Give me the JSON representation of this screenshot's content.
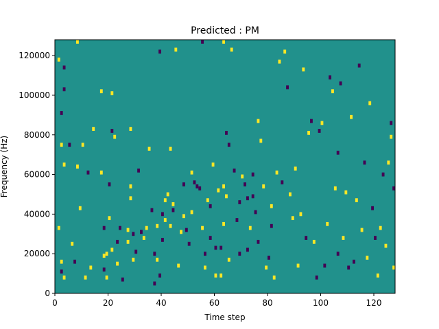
{
  "chart_data": {
    "type": "heatmap",
    "title": "Predicted : PM",
    "xlabel": "Time step",
    "ylabel": "Frequency (Hz)",
    "xlim": [
      0,
      128
    ],
    "ylim": [
      0,
      128000
    ],
    "xticks": [
      0,
      20,
      40,
      60,
      80,
      100,
      120
    ],
    "yticks": [
      0,
      20000,
      40000,
      60000,
      80000,
      100000,
      120000
    ],
    "grid": false,
    "colormap": "viridis",
    "levels": [
      -1,
      0,
      1
    ],
    "colors": {
      "-1": "#440154",
      "0": "#21918c",
      "1": "#fde725"
    },
    "bin_width_hz": 2000,
    "background_level": 0,
    "cells": [
      [
        1,
        118000,
        1
      ],
      [
        1,
        33000,
        1
      ],
      [
        2,
        91000,
        -1
      ],
      [
        2,
        75000,
        1
      ],
      [
        2,
        16000,
        1
      ],
      [
        2,
        11000,
        -1
      ],
      [
        3,
        114000,
        -1
      ],
      [
        3,
        103000,
        -1
      ],
      [
        3,
        65000,
        1
      ],
      [
        3,
        8000,
        1
      ],
      [
        5,
        75000,
        -1
      ],
      [
        6,
        25000,
        1
      ],
      [
        7,
        16000,
        -1
      ],
      [
        8,
        127000,
        1
      ],
      [
        8,
        64000,
        1
      ],
      [
        9,
        43000,
        1
      ],
      [
        10,
        75000,
        1
      ],
      [
        11,
        8000,
        1
      ],
      [
        12,
        61000,
        -1
      ],
      [
        13,
        13000,
        1
      ],
      [
        14,
        83000,
        1
      ],
      [
        17,
        102000,
        1
      ],
      [
        17,
        61000,
        1
      ],
      [
        18,
        33000,
        -1
      ],
      [
        18,
        19000,
        1
      ],
      [
        18,
        12000,
        -1
      ],
      [
        19,
        20000,
        1
      ],
      [
        19,
        8000,
        1
      ],
      [
        20,
        55000,
        -1
      ],
      [
        20,
        38000,
        1
      ],
      [
        21,
        82000,
        -1
      ],
      [
        21,
        101000,
        1
      ],
      [
        21,
        22000,
        1
      ],
      [
        22,
        79000,
        1
      ],
      [
        23,
        26000,
        -1
      ],
      [
        23,
        15000,
        1
      ],
      [
        24,
        33000,
        -1
      ],
      [
        25,
        7000,
        -1
      ],
      [
        27,
        32000,
        1
      ],
      [
        27,
        26000,
        1
      ],
      [
        28,
        83000,
        1
      ],
      [
        28,
        54000,
        1
      ],
      [
        28,
        48000,
        1
      ],
      [
        29,
        17000,
        1
      ],
      [
        29,
        30000,
        -1
      ],
      [
        30,
        21000,
        -1
      ],
      [
        31,
        62000,
        -1
      ],
      [
        32,
        31000,
        -1
      ],
      [
        33,
        28000,
        1
      ],
      [
        34,
        33000,
        1
      ],
      [
        35,
        73000,
        1
      ],
      [
        36,
        42000,
        -1
      ],
      [
        37,
        20000,
        -1
      ],
      [
        37,
        5000,
        -1
      ],
      [
        38,
        34000,
        1
      ],
      [
        38,
        17000,
        1
      ],
      [
        39,
        122000,
        -1
      ],
      [
        39,
        9000,
        -1
      ],
      [
        40,
        40000,
        -1
      ],
      [
        40,
        27000,
        -1
      ],
      [
        41,
        47000,
        1
      ],
      [
        41,
        37000,
        1
      ],
      [
        42,
        50000,
        1
      ],
      [
        43,
        34000,
        1
      ],
      [
        43,
        73000,
        1
      ],
      [
        44,
        45000,
        1
      ],
      [
        44,
        42000,
        -1
      ],
      [
        45,
        123000,
        1
      ],
      [
        46,
        14000,
        1
      ],
      [
        47,
        31000,
        1
      ],
      [
        48,
        55000,
        -1
      ],
      [
        48,
        39000,
        1
      ],
      [
        49,
        32000,
        -1
      ],
      [
        50,
        25000,
        -1
      ],
      [
        51,
        61000,
        1
      ],
      [
        51,
        41000,
        1
      ],
      [
        52,
        56000,
        -1
      ],
      [
        53,
        54000,
        -1
      ],
      [
        54,
        53000,
        -1
      ],
      [
        55,
        127000,
        -1
      ],
      [
        55,
        33000,
        1
      ],
      [
        56,
        20000,
        -1
      ],
      [
        56,
        13000,
        1
      ],
      [
        57,
        47000,
        1
      ],
      [
        58,
        44000,
        -1
      ],
      [
        58,
        28000,
        -1
      ],
      [
        59,
        65000,
        1
      ],
      [
        60,
        23000,
        -1
      ],
      [
        60,
        9000,
        1
      ],
      [
        61,
        52000,
        1
      ],
      [
        62,
        23000,
        -1
      ],
      [
        62,
        9000,
        1
      ],
      [
        63,
        127000,
        1
      ],
      [
        63,
        54000,
        1
      ],
      [
        63,
        35000,
        1
      ],
      [
        64,
        49000,
        1
      ],
      [
        64,
        81000,
        -1
      ],
      [
        65,
        17000,
        1
      ],
      [
        65,
        75000,
        -1
      ],
      [
        66,
        123000,
        1
      ],
      [
        67,
        62000,
        -1
      ],
      [
        68,
        37000,
        -1
      ],
      [
        69,
        46000,
        -1
      ],
      [
        69,
        20000,
        -1
      ],
      [
        70,
        59000,
        1
      ],
      [
        71,
        55000,
        -1
      ],
      [
        72,
        48000,
        -1
      ],
      [
        72,
        22000,
        -1
      ],
      [
        73,
        33000,
        1
      ],
      [
        74,
        60000,
        -1
      ],
      [
        74,
        49000,
        -1
      ],
      [
        75,
        41000,
        -1
      ],
      [
        76,
        87000,
        1
      ],
      [
        76,
        26000,
        -1
      ],
      [
        77,
        77000,
        1
      ],
      [
        78,
        54000,
        1
      ],
      [
        79,
        13000,
        1
      ],
      [
        80,
        18000,
        -1
      ],
      [
        81,
        44000,
        1
      ],
      [
        81,
        34000,
        -1
      ],
      [
        82,
        8000,
        1
      ],
      [
        83,
        61000,
        1
      ],
      [
        84,
        117000,
        1
      ],
      [
        85,
        56000,
        -1
      ],
      [
        86,
        122000,
        1
      ],
      [
        87,
        104000,
        -1
      ],
      [
        88,
        50000,
        1
      ],
      [
        89,
        38000,
        1
      ],
      [
        90,
        63000,
        1
      ],
      [
        91,
        14000,
        1
      ],
      [
        92,
        40000,
        1
      ],
      [
        93,
        113000,
        1
      ],
      [
        94,
        28000,
        -1
      ],
      [
        95,
        81000,
        1
      ],
      [
        96,
        87000,
        -1
      ],
      [
        97,
        26000,
        1
      ],
      [
        98,
        8000,
        -1
      ],
      [
        99,
        82000,
        -1
      ],
      [
        100,
        86000,
        1
      ],
      [
        101,
        14000,
        -1
      ],
      [
        102,
        35000,
        1
      ],
      [
        103,
        109000,
        -1
      ],
      [
        104,
        102000,
        1
      ],
      [
        105,
        53000,
        1
      ],
      [
        106,
        20000,
        -1
      ],
      [
        106,
        71000,
        -1
      ],
      [
        107,
        106000,
        -1
      ],
      [
        108,
        28000,
        1
      ],
      [
        109,
        51000,
        1
      ],
      [
        110,
        13000,
        -1
      ],
      [
        111,
        89000,
        1
      ],
      [
        112,
        16000,
        -1
      ],
      [
        113,
        47000,
        1
      ],
      [
        114,
        115000,
        -1
      ],
      [
        115,
        32000,
        1
      ],
      [
        116,
        66000,
        -1
      ],
      [
        117,
        18000,
        1
      ],
      [
        118,
        96000,
        1
      ],
      [
        119,
        43000,
        -1
      ],
      [
        120,
        28000,
        -1
      ],
      [
        121,
        9000,
        1
      ],
      [
        122,
        33000,
        1
      ],
      [
        123,
        60000,
        -1
      ],
      [
        124,
        24000,
        1
      ],
      [
        125,
        66000,
        1
      ],
      [
        126,
        86000,
        -1
      ],
      [
        126,
        79000,
        1
      ],
      [
        127,
        13000,
        1
      ],
      [
        127,
        53000,
        -1
      ]
    ]
  }
}
